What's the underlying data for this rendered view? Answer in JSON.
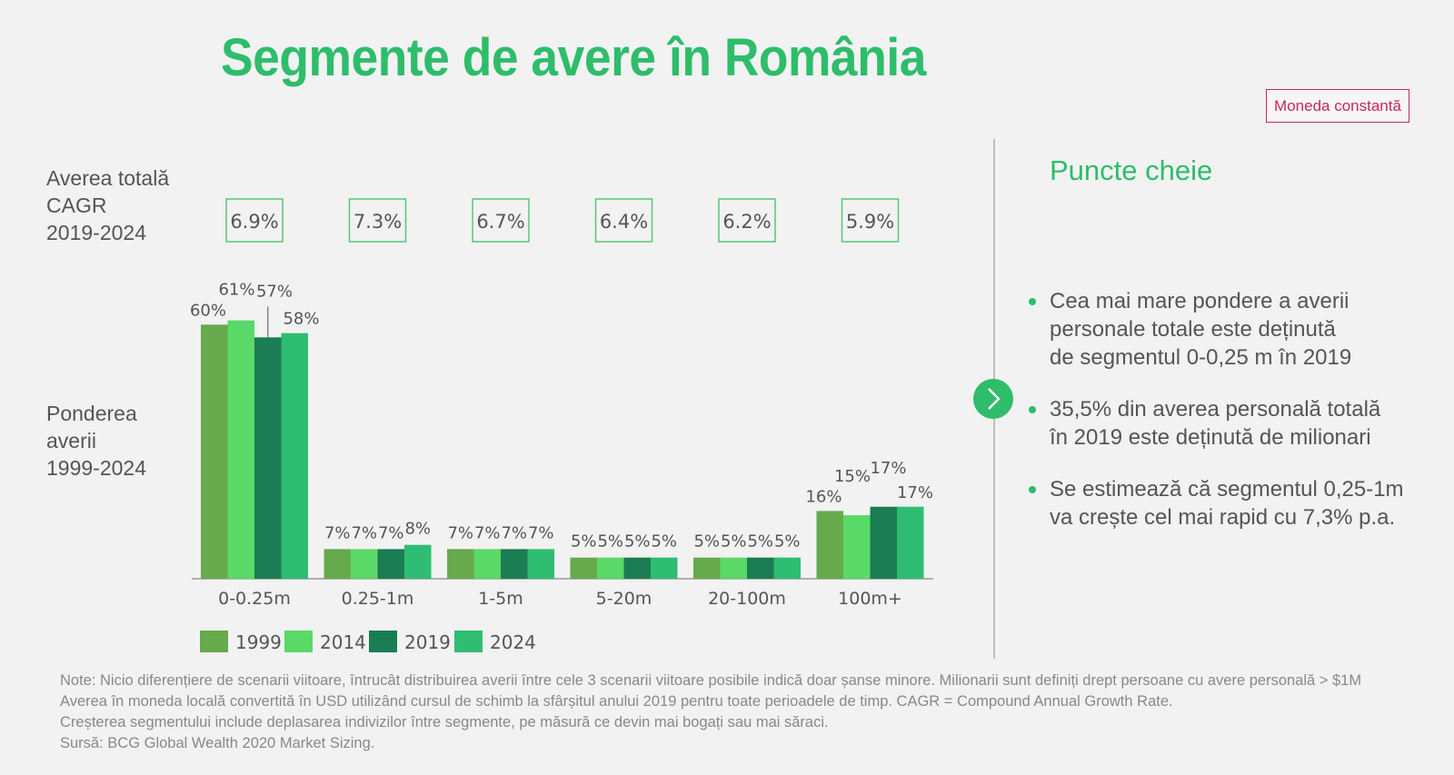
{
  "title": "Segmente de avere în România",
  "badge": "Moneda constantă",
  "row_labels": {
    "cagr": [
      "Averea totală",
      "CAGR",
      "2019-2024"
    ],
    "share": [
      "Ponderea",
      "averii",
      "1999-2024"
    ]
  },
  "colors": {
    "accent": "#2ebd6b",
    "badge": "#c8285a",
    "y1999": "#67a94d",
    "y2014": "#5ad968",
    "y2019": "#1b7d53",
    "y2024": "#2ebd72"
  },
  "chart_data": {
    "type": "bar",
    "categories": [
      "0-0.25m",
      "0.25-1m",
      "1-5m",
      "5-20m",
      "20-100m",
      "100m+"
    ],
    "series": [
      {
        "name": "1999",
        "values": [
          60,
          7,
          7,
          5,
          5,
          16
        ],
        "labels": [
          "60%",
          "7%",
          "7%",
          "5%",
          "5%",
          "16%"
        ]
      },
      {
        "name": "2014",
        "values": [
          61,
          7,
          7,
          5,
          5,
          15
        ],
        "labels": [
          "61%",
          "7%",
          "7%",
          "5%",
          "5%",
          "15%"
        ]
      },
      {
        "name": "2019",
        "values": [
          57,
          7,
          7,
          5,
          5,
          17
        ],
        "labels": [
          "57%",
          "7%",
          "7%",
          "5%",
          "5%",
          "17%"
        ]
      },
      {
        "name": "2024",
        "values": [
          58,
          8,
          7,
          5,
          5,
          17
        ],
        "labels": [
          "58%",
          "8%",
          "7%",
          "5%",
          "5%",
          "17%"
        ]
      }
    ],
    "cagr": [
      "6.9%",
      "7.3%",
      "6.7%",
      "6.4%",
      "6.2%",
      "5.9%"
    ],
    "ylim": [
      0,
      62
    ],
    "legend_position": "bottom-left"
  },
  "key_points": {
    "title": "Puncte cheie",
    "items": [
      [
        "Cea mai mare pondere a averii",
        "personale totale este deținută",
        "de segmentul 0-0,25 m în 2019"
      ],
      [
        "35,5% din averea personală totală",
        "în 2019 este deținută de milionari"
      ],
      [
        "Se estimează că segmentul 0,25-1m",
        "va crește cel mai rapid cu 7,3% p.a."
      ]
    ]
  },
  "notes": [
    "Note: Nicio diferențiere de scenarii viitoare, întrucât distribuirea averii între cele 3 scenarii viitoare posibile indică doar șanse minore. Milionarii sunt definiți drept persoane cu avere personală > $1M",
    "Averea în moneda locală convertită în USD utilizând cursul de schimb la sfârșitul anului 2019 pentru  toate perioadele de timp. CAGR = Compound Annual Growth Rate.",
    "Creșterea segmentului include deplasarea indivizilor între segmente, pe măsură ce devin mai bogați sau mai săraci.",
    "Sursă: BCG Global Wealth 2020 Market Sizing."
  ]
}
